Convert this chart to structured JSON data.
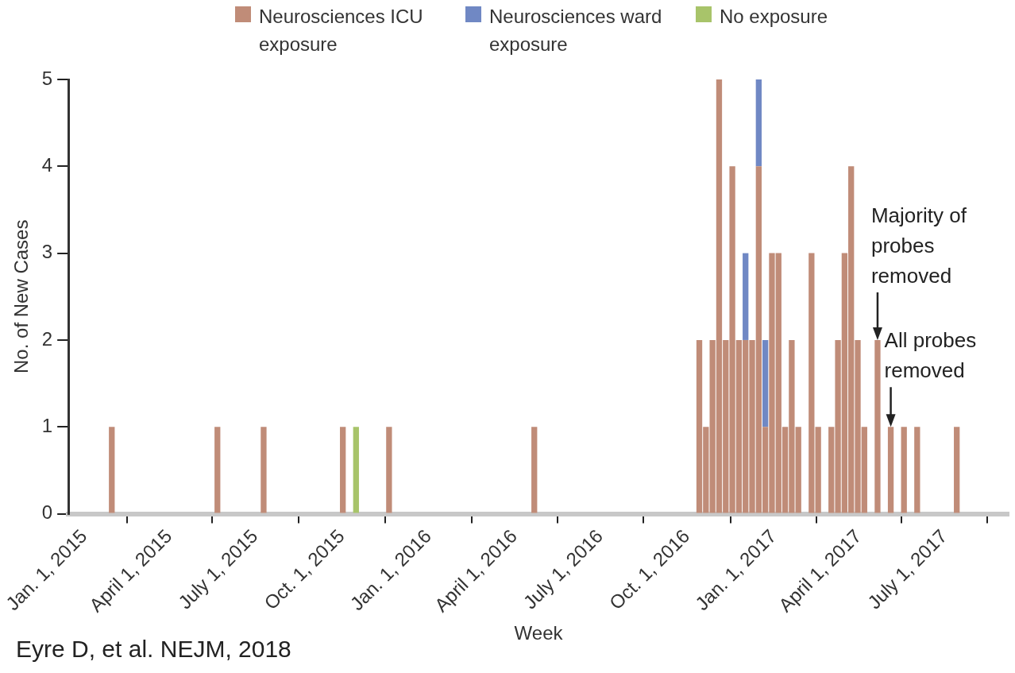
{
  "chart_data": {
    "type": "bar",
    "stacked": true,
    "xlabel": "Week",
    "ylabel": "No. of New Cases",
    "legend": "top",
    "x": [
      "2015-01-30",
      "2015-05-22",
      "2015-07-10",
      "2015-10-02",
      "2015-10-16",
      "2015-11-20",
      "2016-04-22",
      "2016-10-14",
      "2016-10-21",
      "2016-10-28",
      "2016-11-04",
      "2016-11-11",
      "2016-11-18",
      "2016-11-25",
      "2016-12-02",
      "2016-12-09",
      "2016-12-16",
      "2016-12-23",
      "2016-12-30",
      "2017-01-06",
      "2017-01-13",
      "2017-01-20",
      "2017-01-27",
      "2017-02-10",
      "2017-02-17",
      "2017-03-03",
      "2017-03-10",
      "2017-03-17",
      "2017-03-24",
      "2017-03-31",
      "2017-04-07",
      "2017-04-21",
      "2017-05-05",
      "2017-05-19",
      "2017-06-02",
      "2017-07-14"
    ],
    "series": [
      {
        "name": "Neurosciences ICU exposure",
        "color": "#c08c78",
        "values": [
          1,
          1,
          1,
          1,
          null,
          1,
          1,
          2,
          1,
          2,
          5,
          2,
          4,
          2,
          2,
          2,
          4,
          1,
          3,
          3,
          1,
          2,
          1,
          3,
          1,
          1,
          2,
          3,
          4,
          2,
          1,
          2,
          1,
          1,
          1,
          1
        ]
      },
      {
        "name": "Neurosciences ward exposure",
        "color": "#7088c4",
        "values": [
          null,
          null,
          null,
          null,
          null,
          null,
          null,
          null,
          null,
          null,
          null,
          null,
          null,
          null,
          1,
          null,
          1,
          1,
          null,
          null,
          null,
          null,
          null,
          null,
          null,
          null,
          null,
          null,
          null,
          null,
          null,
          null,
          null,
          null,
          null,
          null
        ]
      },
      {
        "name": "No exposure",
        "color": "#a8c46a",
        "values": [
          null,
          null,
          null,
          null,
          1,
          null,
          null,
          null,
          null,
          null,
          null,
          null,
          null,
          null,
          null,
          null,
          null,
          null,
          null,
          null,
          null,
          null,
          null,
          null,
          null,
          null,
          null,
          null,
          null,
          null,
          null,
          null,
          null,
          null,
          null,
          null
        ]
      }
    ],
    "xlim": [
      "2014-12-15",
      "2017-09-07"
    ],
    "xticks": [
      {
        "value": "2015-01-01",
        "label": "Jan. 1, 2015"
      },
      {
        "value": "2015-04-01",
        "label": "April 1, 2015"
      },
      {
        "value": "2015-07-01",
        "label": "July 1, 2015"
      },
      {
        "value": "2015-10-01",
        "label": "Oct. 1, 2015"
      },
      {
        "value": "2016-01-01",
        "label": "Jan. 1, 2016"
      },
      {
        "value": "2016-04-01",
        "label": "April 1, 2016"
      },
      {
        "value": "2016-07-01",
        "label": "July 1, 2016"
      },
      {
        "value": "2016-10-01",
        "label": "Oct. 1, 2016"
      },
      {
        "value": "2017-01-01",
        "label": "Jan. 1, 2017"
      },
      {
        "value": "2017-04-01",
        "label": "April 1, 2017"
      },
      {
        "value": "2017-07-01",
        "label": "July 1, 2017"
      }
    ],
    "ylim": [
      0,
      5
    ],
    "yticks": [
      0,
      1,
      2,
      3,
      4,
      5
    ],
    "annotations": [
      {
        "text": "Majority of probes removed",
        "x": "2017-04-21",
        "y": 2
      },
      {
        "text": "All probes removed",
        "x": "2017-05-05",
        "y": 1
      },
      "Eyre D, et al. NEJM, 2018"
    ]
  }
}
